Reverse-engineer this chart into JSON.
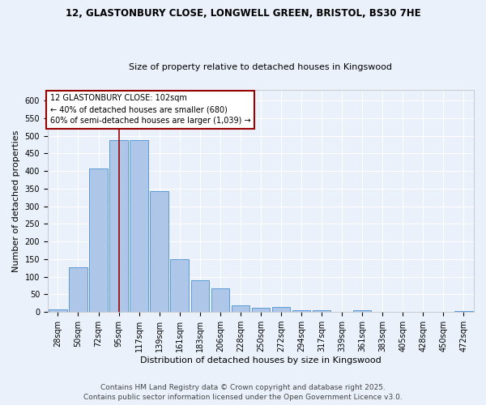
{
  "title_line1": "12, GLASTONBURY CLOSE, LONGWELL GREEN, BRISTOL, BS30 7HE",
  "title_line2": "Size of property relative to detached houses in Kingswood",
  "xlabel": "Distribution of detached houses by size in Kingswood",
  "ylabel": "Number of detached properties",
  "bar_labels": [
    "28sqm",
    "50sqm",
    "72sqm",
    "95sqm",
    "117sqm",
    "139sqm",
    "161sqm",
    "183sqm",
    "206sqm",
    "228sqm",
    "250sqm",
    "272sqm",
    "294sqm",
    "317sqm",
    "339sqm",
    "361sqm",
    "383sqm",
    "405sqm",
    "428sqm",
    "450sqm",
    "472sqm"
  ],
  "bar_values": [
    7,
    128,
    408,
    487,
    487,
    343,
    150,
    90,
    68,
    18,
    13,
    15,
    6,
    4,
    0,
    4,
    0,
    0,
    0,
    0,
    3
  ],
  "bar_color": "#aec6e8",
  "bar_edge_color": "#5b9bd5",
  "background_color": "#eaf1fb",
  "grid_color": "#ffffff",
  "vline_x": 3.0,
  "vline_color": "#9b0000",
  "annotation_text": "12 GLASTONBURY CLOSE: 102sqm\n← 40% of detached houses are smaller (680)\n60% of semi-detached houses are larger (1,039) →",
  "annotation_box_color": "#ffffff",
  "annotation_box_edge": "#9b0000",
  "ylim": [
    0,
    630
  ],
  "yticks": [
    0,
    50,
    100,
    150,
    200,
    250,
    300,
    350,
    400,
    450,
    500,
    550,
    600
  ],
  "footer_line1": "Contains HM Land Registry data © Crown copyright and database right 2025.",
  "footer_line2": "Contains public sector information licensed under the Open Government Licence v3.0.",
  "footer_fontsize": 6.5,
  "title_fontsize1": 8.5,
  "title_fontsize2": 8.0,
  "xlabel_fontsize": 8.0,
  "ylabel_fontsize": 8.0,
  "tick_fontsize": 7.0,
  "ann_fontsize": 7.0
}
